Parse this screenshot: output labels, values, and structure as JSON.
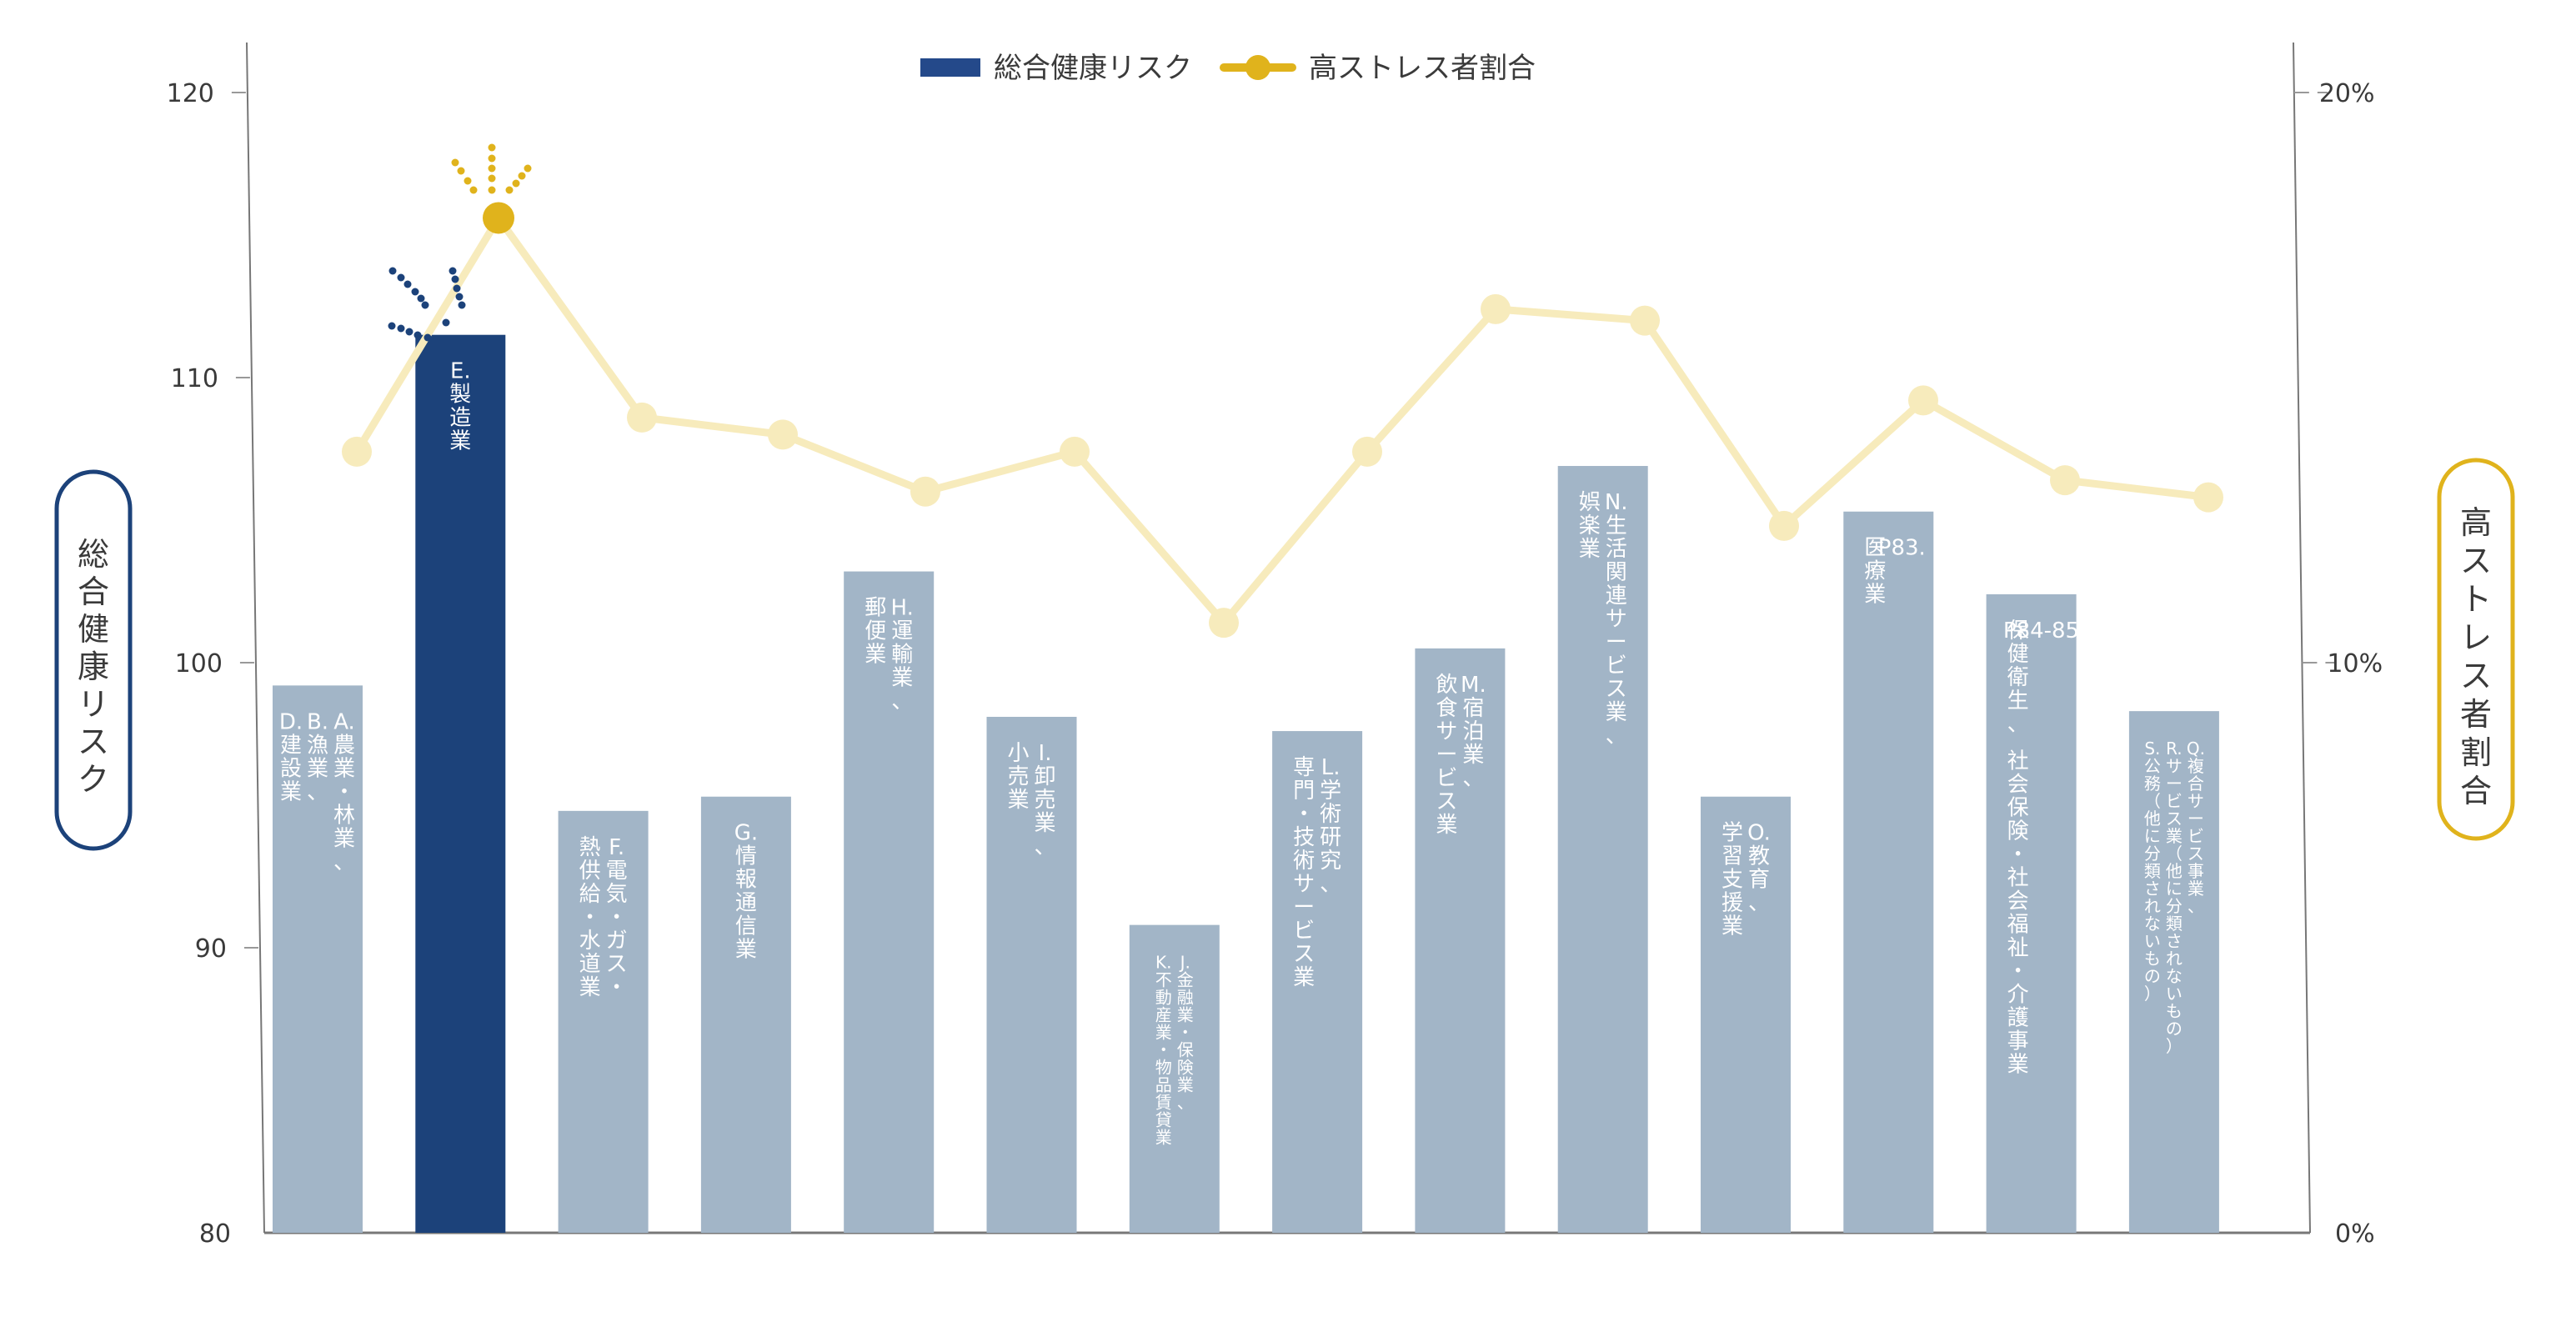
{
  "chart_data": {
    "type": "bar+line",
    "title": "",
    "legend": [
      {
        "label": "総合健康リスク",
        "type": "bar",
        "color": "#1c427a"
      },
      {
        "label": "高ストレス者割合",
        "type": "line",
        "color": "#e0b31c"
      }
    ],
    "legend_position": "top-center",
    "left_axis": {
      "title": "総合健康リスク",
      "ticks": [
        "80",
        "90",
        "100",
        "110",
        "120"
      ],
      "ylim": [
        80,
        120
      ],
      "title_border_color": "#1c427a"
    },
    "right_axis": {
      "title": "高ストレス者割合",
      "ticks": [
        "0%",
        "10%",
        "20%"
      ],
      "ylim": [
        0,
        20
      ],
      "title_border_color": "#e0b31c"
    },
    "grid": false,
    "categories": [
      "A.農業・林業、B.漁業、D.建設業",
      "E.製造業",
      "F.電気・ガス・熱供給・水道業",
      "G.情報通信業",
      "H.運輸業、郵便業",
      "I.卸売業、小売業",
      "J.金融業・保険業、K.不動産業・物品賃貸業",
      "L.学術研究、専門・技術サービス業",
      "M.宿泊業、飲食サービス業",
      "N.生活関連サービス業、娯楽業",
      "O.教育、学習支援業",
      "P83.医療業",
      "P84-85.保健衛生、社会保険・社会福祉・介護事業",
      "Q.複合サービス事業、R.サービス業（他に分類されないもの）S.公務（他に分類されないもの）"
    ],
    "series": [
      {
        "name": "総合健康リスク",
        "type": "bar",
        "axis": "left",
        "values": [
          99.2,
          111.5,
          94.8,
          95.3,
          103.2,
          98.1,
          90.8,
          97.6,
          100.5,
          106.9,
          95.3,
          105.3,
          102.4,
          98.3
        ]
      },
      {
        "name": "高ストレス者割合",
        "type": "line",
        "axis": "right",
        "unit": "%",
        "values": [
          13.7,
          17.8,
          14.3,
          14.0,
          13.0,
          13.7,
          10.7,
          13.7,
          16.2,
          16.0,
          12.4,
          14.6,
          13.2,
          12.9
        ]
      }
    ],
    "highlight": {
      "index": 1,
      "label": "E.製造業"
    }
  },
  "legend": {
    "bar_label": "総合健康リスク",
    "line_label": "高ストレス者割合"
  },
  "axes": {
    "left_title": "総合健康リスク",
    "right_title": "高ストレス者割合",
    "left_ticks": [
      "120",
      "110",
      "100",
      "90",
      "80"
    ],
    "right_ticks": [
      "20%",
      "10%",
      "0%"
    ]
  },
  "bars": [
    {
      "columns": [
        "A.農業・林業、",
        "B.漁業、",
        "D.建設業"
      ],
      "small": false
    },
    {
      "columns": [
        "E.製造業"
      ],
      "small": false
    },
    {
      "columns": [
        "F.電気・ガス・",
        "熱供給・水道業"
      ],
      "small": false
    },
    {
      "columns": [
        "G.情報通信業"
      ],
      "small": false
    },
    {
      "columns": [
        "H.運輸業、",
        "郵便業"
      ],
      "small": false
    },
    {
      "columns": [
        "I.卸売業、",
        "小売業"
      ],
      "small": false
    },
    {
      "columns": [
        "J.金融業・保険業、",
        "K.不動産業・物品賃貸業"
      ],
      "small": true
    },
    {
      "columns": [
        "L.学術研究、",
        "専門・技術サービス業"
      ],
      "small": false
    },
    {
      "columns": [
        "M.宿泊業、",
        "飲食サービス業"
      ],
      "small": false
    },
    {
      "columns": [
        "N.生活関連サービス業、",
        "娯楽業"
      ],
      "small": false
    },
    {
      "columns": [
        "O.教育、",
        "学習支援業"
      ],
      "small": false
    },
    {
      "columns": [
        "P83.",
        "医療業"
      ],
      "small": false
    },
    {
      "columns": [
        "P84-85.",
        "保健衛生、社会保険・社会福祉・介護事業"
      ],
      "small": false
    },
    {
      "columns": [
        "Q.複合サービス事業、",
        "R.サービス業（他に分類されないもの）",
        "S.公務（他に分類されないもの）"
      ],
      "small": true
    }
  ],
  "colors": {
    "bar_default": "#a2b5c7",
    "bar_highlight": "#1c427a",
    "line": "#f7ebbc",
    "line_highlight_marker": "#e0b31c",
    "axis": "#777777",
    "text": "#3a3a3a"
  }
}
